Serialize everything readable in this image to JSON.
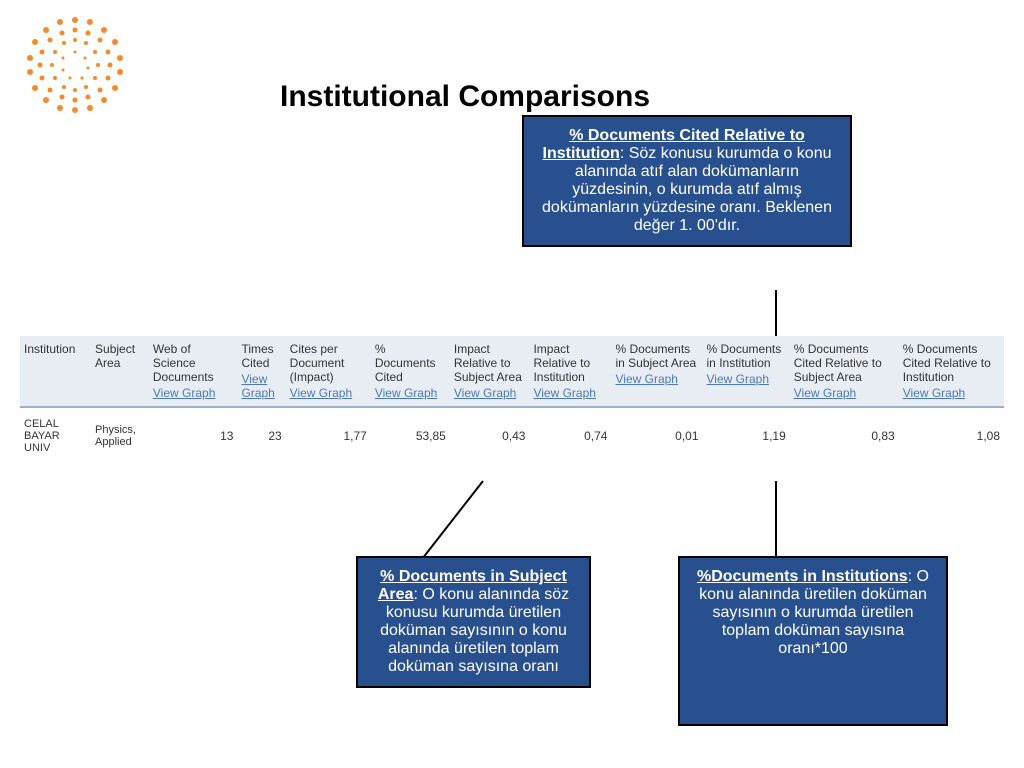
{
  "title": "Institutional Comparisons",
  "callouts": {
    "c1": {
      "head": "% Documents Cited Relative to Institution",
      "body": ": Söz konusu kurumda o konu alanında atıf alan dokümanların yüzdesinin, o kurumda atıf almış dokümanların yüzdesine oranı. Beklenen değer 1. 00'dır."
    },
    "c2": {
      "head": "% Documents in Subject Area",
      "body": ": O konu alanında söz konusu kurumda üretilen doküman sayısının o konu alanında üretilen toplam doküman sayısına oranı"
    },
    "c3": {
      "head": "%Documents in Institutions",
      "body": ": O konu alanında üretilen doküman sayısının o kurumda üretilen toplam doküman sayısına oranı*100"
    }
  },
  "table": {
    "headers": [
      {
        "label": "Institution",
        "link": ""
      },
      {
        "label": "Subject Area",
        "link": ""
      },
      {
        "label": "Web of Science Documents",
        "link": "View Graph"
      },
      {
        "label": "Times Cited",
        "link": "View Graph"
      },
      {
        "label": "Cites per Document (Impact)",
        "link": "View Graph"
      },
      {
        "label": "% Documents Cited",
        "link": "View Graph"
      },
      {
        "label": "Impact Relative to Subject Area",
        "link": "View Graph"
      },
      {
        "label": "Impact Relative to Institution",
        "link": "View Graph"
      },
      {
        "label": "% Documents in Subject Area",
        "link": "View Graph"
      },
      {
        "label": "% Documents in Institution",
        "link": "View Graph"
      },
      {
        "label": "% Documents Cited Relative to Subject Area",
        "link": "View Graph"
      },
      {
        "label": "% Documents Cited Relative to Institution",
        "link": "View Graph"
      }
    ],
    "row": {
      "institution": "CELAL BAYAR UNIV",
      "subject": "Physics, Applied",
      "values": [
        "13",
        "23",
        "1,77",
        "53,85",
        "0,43",
        "0,74",
        "0,01",
        "1,19",
        "0,83",
        "1,08"
      ]
    }
  },
  "colors": {
    "callout_bg": "#284f8e",
    "header_bg": "#e8edf3",
    "link": "#4b78b8",
    "logo_orange": "#f48a2a"
  }
}
